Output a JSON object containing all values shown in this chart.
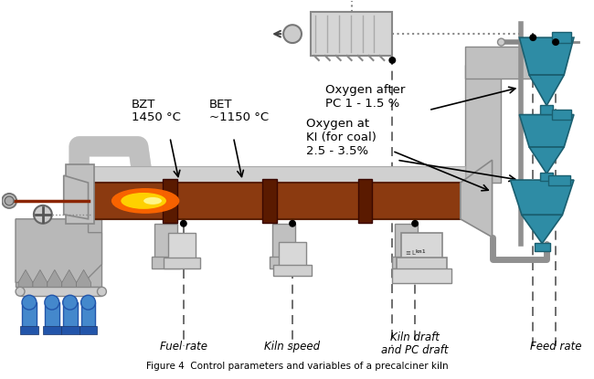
{
  "title": "Figure 4  Control parameters and variables of a precalciner kiln",
  "bg_color": "#ffffff",
  "kiln_color": "#8B3A10",
  "kiln_outline": "#5a2000",
  "cyclone_color": "#2e8ca5",
  "pipe_color": "#a0a0a0",
  "cooler_color": "#b8b8b8",
  "text_color": "#000000",
  "dashed_color": "#555555",
  "labels": {
    "BZT": "BZT",
    "BZT_temp": "1450 °C",
    "BET": "BET",
    "BET_temp": "~1150 °C",
    "oxygen_after_pc": "Oxygen after\nPC 1 - 1.5 %",
    "oxygen_at_ki": "Oxygen at\nKI (for coal)\n2.5 - 3.5%",
    "fuel_rate": "Fuel rate",
    "kiln_speed": "Kiln speed",
    "kiln_draft": "Kiln draft",
    "pc_draft": "and PC draft",
    "feed_rate": "Feed rate"
  }
}
